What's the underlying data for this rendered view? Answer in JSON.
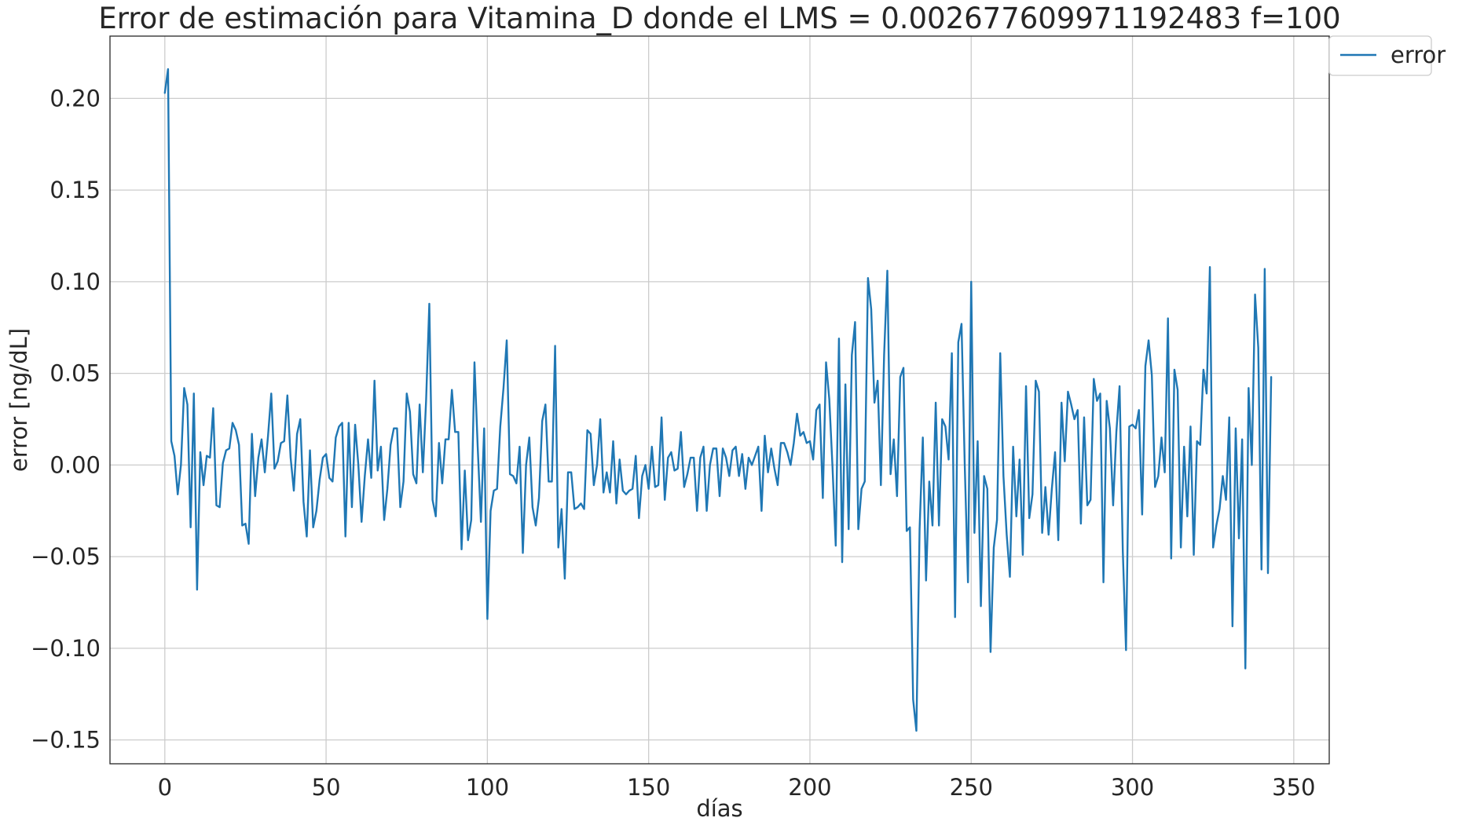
{
  "chart_data": {
    "type": "line",
    "title": "Error de estimación para Vitamina_D donde el LMS = 0.002677609971192483 f=100",
    "xlabel": "días",
    "ylabel": "error  [ng/dL]",
    "xlim": [
      -17,
      361
    ],
    "ylim": [
      -0.163,
      0.234
    ],
    "x_ticks": [
      0,
      50,
      100,
      150,
      200,
      250,
      300,
      350
    ],
    "y_ticks": [
      -0.15,
      -0.1,
      -0.05,
      0.0,
      0.05,
      0.1,
      0.15,
      0.2
    ],
    "x_tick_labels": [
      "0",
      "50",
      "100",
      "150",
      "200",
      "250",
      "300",
      "350"
    ],
    "y_tick_labels": [
      "−0.15",
      "−0.10",
      "−0.05",
      "0.00",
      "0.05",
      "0.10",
      "0.15",
      "0.20"
    ],
    "grid": true,
    "legend_position": "top-right, outside the plot",
    "series": [
      {
        "name": "error",
        "color": "#1f77b4",
        "values": [
          0.203,
          0.216,
          0.013,
          0.005,
          -0.016,
          0.0,
          0.042,
          0.033,
          -0.034,
          0.039,
          -0.068,
          0.007,
          -0.011,
          0.005,
          0.004,
          0.031,
          -0.022,
          -0.023,
          0.001,
          0.008,
          0.009,
          0.023,
          0.019,
          0.011,
          -0.033,
          -0.032,
          -0.043,
          0.017,
          -0.017,
          0.004,
          0.014,
          -0.004,
          0.016,
          0.039,
          -0.002,
          0.002,
          0.012,
          0.013,
          0.038,
          0.004,
          -0.014,
          0.017,
          0.025,
          -0.02,
          -0.039,
          0.008,
          -0.034,
          -0.025,
          -0.008,
          0.004,
          0.006,
          -0.007,
          -0.009,
          0.015,
          0.021,
          0.023,
          -0.039,
          0.023,
          -0.023,
          0.022,
          0.0,
          -0.031,
          -0.006,
          0.014,
          -0.007,
          0.046,
          -0.003,
          0.01,
          -0.03,
          -0.013,
          0.011,
          0.02,
          0.02,
          -0.023,
          -0.009,
          0.039,
          0.029,
          -0.005,
          -0.01,
          0.033,
          -0.004,
          0.035,
          0.088,
          -0.019,
          -0.028,
          0.012,
          -0.01,
          0.014,
          0.014,
          0.041,
          0.018,
          0.018,
          -0.046,
          -0.003,
          -0.041,
          -0.03,
          0.056,
          0.01,
          -0.031,
          0.02,
          -0.084,
          -0.025,
          -0.014,
          -0.013,
          0.021,
          0.042,
          0.068,
          -0.005,
          -0.006,
          -0.01,
          0.01,
          -0.048,
          0.0,
          0.015,
          -0.023,
          -0.033,
          -0.018,
          0.024,
          0.033,
          -0.009,
          -0.009,
          0.065,
          -0.045,
          -0.024,
          -0.062,
          -0.004,
          -0.004,
          -0.024,
          -0.023,
          -0.021,
          -0.024,
          0.019,
          0.017,
          -0.011,
          0.0,
          0.025,
          -0.015,
          -0.004,
          -0.015,
          0.013,
          -0.021,
          0.003,
          -0.014,
          -0.016,
          -0.014,
          -0.013,
          0.005,
          -0.029,
          -0.006,
          0.0,
          -0.013,
          0.01,
          -0.012,
          -0.011,
          0.026,
          -0.019,
          0.004,
          0.007,
          -0.003,
          -0.002,
          0.018,
          -0.012,
          -0.005,
          0.004,
          0.004,
          -0.025,
          0.004,
          0.01,
          -0.025,
          0.0,
          0.009,
          0.009,
          -0.017,
          0.009,
          0.004,
          -0.006,
          0.008,
          0.01,
          -0.006,
          0.006,
          -0.013,
          0.004,
          0.0,
          0.005,
          0.01,
          -0.025,
          0.016,
          -0.004,
          0.009,
          -0.002,
          -0.011,
          0.012,
          0.012,
          0.007,
          0.0,
          0.012,
          0.028,
          0.016,
          0.018,
          0.012,
          0.013,
          0.003,
          0.03,
          0.033,
          -0.018,
          0.056,
          0.036,
          -0.001,
          -0.044,
          0.069,
          -0.053,
          0.044,
          -0.035,
          0.06,
          0.078,
          -0.035,
          -0.013,
          -0.009,
          0.102,
          0.085,
          0.034,
          0.046,
          -0.011,
          0.06,
          0.106,
          -0.005,
          0.014,
          -0.017,
          0.048,
          0.053,
          -0.036,
          -0.034,
          -0.128,
          -0.145,
          -0.035,
          0.015,
          -0.063,
          -0.009,
          -0.033,
          0.034,
          -0.033,
          0.025,
          0.021,
          0.003,
          0.061,
          -0.083,
          0.067,
          0.077,
          0.0,
          -0.064,
          0.1,
          -0.037,
          0.013,
          -0.077,
          -0.006,
          -0.013,
          -0.102,
          -0.045,
          -0.03,
          0.061,
          -0.006,
          -0.038,
          -0.061,
          0.01,
          -0.028,
          0.003,
          -0.049,
          0.043,
          -0.029,
          -0.016,
          0.046,
          0.04,
          -0.037,
          -0.012,
          -0.038,
          -0.013,
          0.007,
          -0.041,
          0.034,
          0.002,
          0.04,
          0.033,
          0.025,
          0.03,
          -0.032,
          0.026,
          -0.022,
          -0.019,
          0.047,
          0.035,
          0.039,
          -0.064,
          0.035,
          0.02,
          -0.022,
          0.018,
          0.043,
          -0.047,
          -0.101,
          0.021,
          0.022,
          0.02,
          0.03,
          -0.027,
          0.054,
          0.068,
          0.049,
          -0.012,
          -0.006,
          0.015,
          -0.004,
          0.08,
          -0.051,
          0.052,
          0.041,
          -0.045,
          0.01,
          -0.028,
          0.021,
          -0.049,
          0.013,
          0.011,
          0.052,
          0.039,
          0.108,
          -0.045,
          -0.033,
          -0.024,
          -0.006,
          -0.019,
          0.026,
          -0.088,
          0.02,
          -0.04,
          0.014,
          -0.111,
          0.042,
          0.0,
          0.093,
          0.064,
          -0.057,
          0.107,
          -0.059,
          0.048
        ]
      }
    ]
  }
}
